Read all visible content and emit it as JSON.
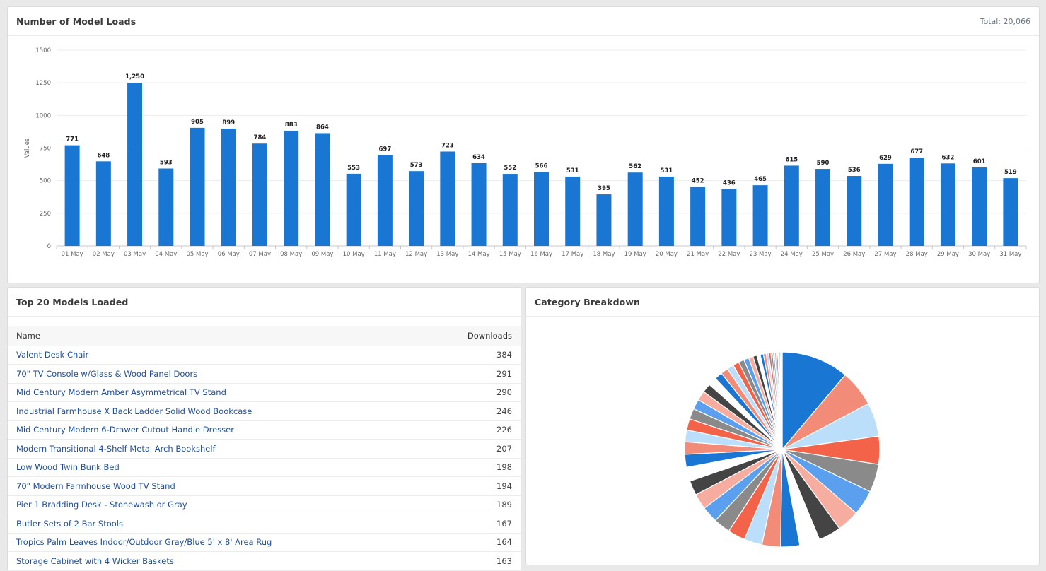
{
  "loads_card": {
    "title": "Number of Model Loads",
    "total": "Total: 20,066"
  },
  "top_card": {
    "title": "Top 20 Models Loaded",
    "col_name": "Name",
    "col_downloads": "Downloads",
    "rows": [
      {
        "name": "Valent Desk Chair",
        "downloads": "384"
      },
      {
        "name": "70\" TV Console w/Glass & Wood Panel Doors",
        "downloads": "291"
      },
      {
        "name": "Mid Century Modern Amber Asymmetrical TV Stand",
        "downloads": "290"
      },
      {
        "name": "Industrial Farmhouse X Back Ladder Solid Wood Bookcase",
        "downloads": "246"
      },
      {
        "name": "Mid Century Modern 6-Drawer Cutout Handle Dresser",
        "downloads": "226"
      },
      {
        "name": "Modern Transitional 4-Shelf Metal Arch Bookshelf",
        "downloads": "207"
      },
      {
        "name": "Low Wood Twin Bunk Bed",
        "downloads": "198"
      },
      {
        "name": "70\" Modern Farmhouse Wood TV Stand",
        "downloads": "194"
      },
      {
        "name": "Pier 1 Bradding Desk - Stonewash or Gray",
        "downloads": "189"
      },
      {
        "name": "Butler Sets of 2 Bar Stools",
        "downloads": "167"
      },
      {
        "name": "Tropics Palm Leaves Indoor/Outdoor Gray/Blue 5' x 8' Area Rug",
        "downloads": "164"
      },
      {
        "name": "Storage Cabinet with 4 Wicker Baskets",
        "downloads": "163"
      }
    ]
  },
  "cat_card": {
    "title": "Category Breakdown"
  },
  "colors": {
    "bar": "#1976d2",
    "link": "#1f4e96"
  },
  "chart_data": [
    {
      "type": "bar",
      "ylabel": "Values",
      "ylim": [
        0,
        1500
      ],
      "yticks": [
        0,
        250,
        500,
        750,
        1000,
        1250,
        1500
      ],
      "grid": true,
      "categories": [
        "01 May",
        "02 May",
        "03 May",
        "04 May",
        "05 May",
        "06 May",
        "07 May",
        "08 May",
        "09 May",
        "10 May",
        "11 May",
        "12 May",
        "13 May",
        "14 May",
        "15 May",
        "16 May",
        "17 May",
        "18 May",
        "19 May",
        "20 May",
        "21 May",
        "22 May",
        "23 May",
        "24 May",
        "25 May",
        "26 May",
        "27 May",
        "28 May",
        "29 May",
        "30 May",
        "31 May"
      ],
      "values": [
        771,
        648,
        1250,
        593,
        905,
        899,
        784,
        883,
        864,
        553,
        697,
        573,
        723,
        634,
        552,
        566,
        531,
        395,
        562,
        531,
        452,
        436,
        465,
        615,
        590,
        536,
        629,
        677,
        632,
        601,
        519
      ]
    },
    {
      "type": "pie",
      "palette": [
        "#1976d2",
        "#f28b77",
        "#bbdefb",
        "#f2634a",
        "#8a8a8a",
        "#5aa0ee",
        "#f7aca0",
        "#444444",
        "#ffffff"
      ],
      "values": [
        12,
        6.5,
        6,
        5,
        5,
        4.5,
        4,
        4,
        3.6,
        3.4,
        3.3,
        3.2,
        3.1,
        3,
        2.9,
        2.8,
        2.6,
        2.5,
        2.3,
        2.2,
        2.1,
        2,
        1.9,
        1.8,
        1.7,
        1.6,
        1.5,
        1.4,
        1.3,
        1.2,
        1.1,
        1,
        0.9,
        0.8,
        0.7,
        0.6,
        0.55,
        0.5,
        0.45,
        0.4,
        0.35,
        0.3,
        0.3,
        0.25,
        0.25,
        0.2,
        0.2,
        0.15
      ]
    }
  ]
}
